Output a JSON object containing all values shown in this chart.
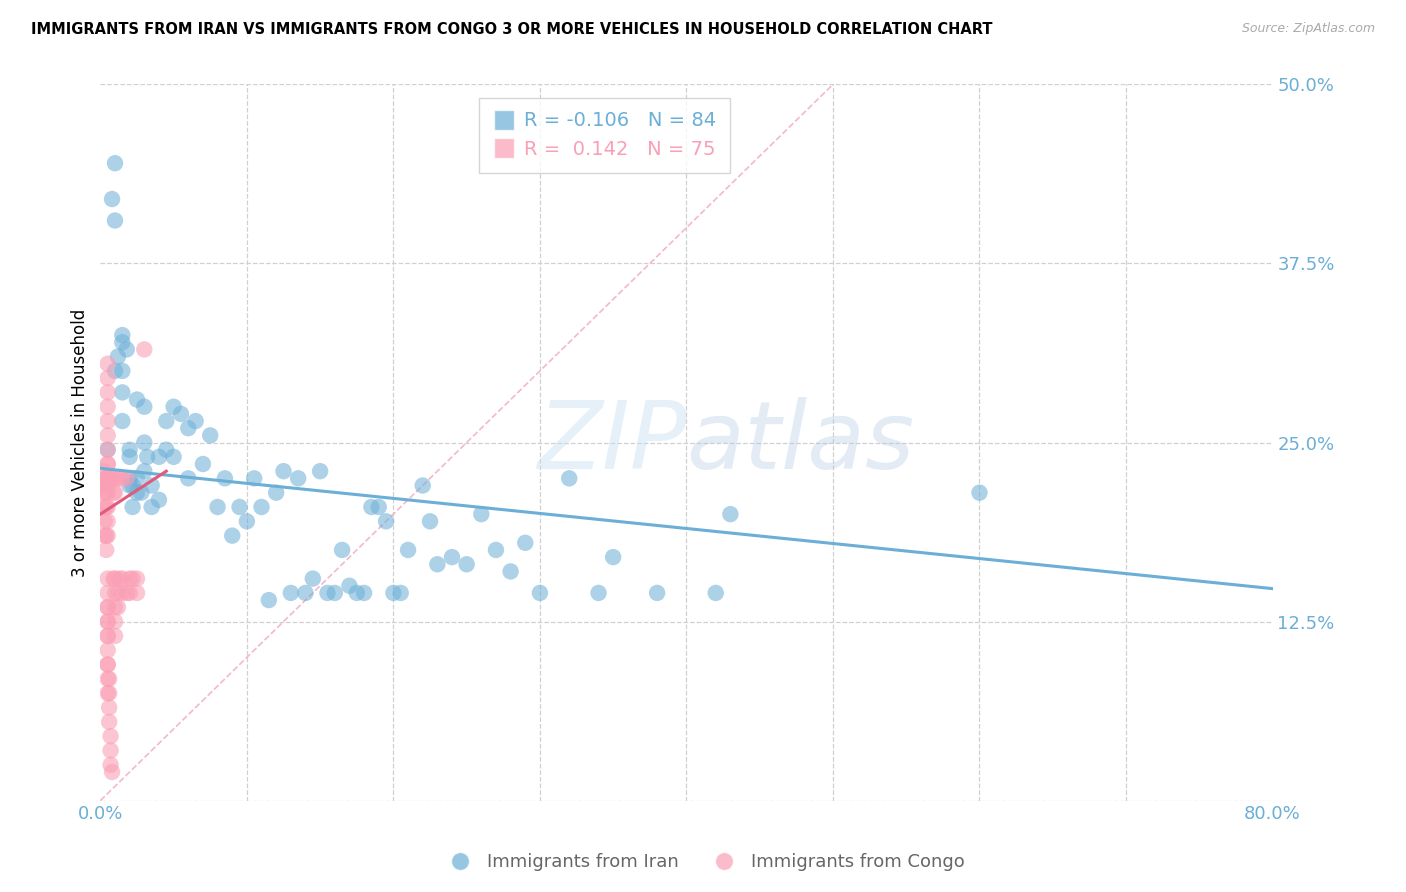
{
  "title": "IMMIGRANTS FROM IRAN VS IMMIGRANTS FROM CONGO 3 OR MORE VEHICLES IN HOUSEHOLD CORRELATION CHART",
  "source": "Source: ZipAtlas.com",
  "ylabel": "3 or more Vehicles in Household",
  "xlim": [
    0.0,
    0.8
  ],
  "ylim": [
    0.0,
    0.5
  ],
  "iran_color": "#6baed6",
  "congo_color": "#fa9fb5",
  "congo_line_color": "#e05a7a",
  "iran_R": -0.106,
  "iran_N": 84,
  "congo_R": 0.142,
  "congo_N": 75,
  "axis_color": "#6baed6",
  "legend_iran_label": "Immigrants from Iran",
  "legend_congo_label": "Immigrants from Congo",
  "iran_trend_x": [
    0.0,
    0.8
  ],
  "iran_trend_y": [
    0.232,
    0.148
  ],
  "congo_trend_x": [
    0.0,
    0.045
  ],
  "congo_trend_y": [
    0.2,
    0.23
  ],
  "diag_line_x": [
    0.0,
    0.5
  ],
  "diag_line_y": [
    0.0,
    0.5
  ],
  "iran_scatter_x": [
    0.005,
    0.008,
    0.01,
    0.01,
    0.012,
    0.015,
    0.015,
    0.015,
    0.018,
    0.02,
    0.02,
    0.02,
    0.02,
    0.022,
    0.022,
    0.025,
    0.025,
    0.025,
    0.028,
    0.03,
    0.03,
    0.03,
    0.032,
    0.035,
    0.035,
    0.04,
    0.04,
    0.045,
    0.045,
    0.05,
    0.05,
    0.055,
    0.06,
    0.06,
    0.065,
    0.07,
    0.075,
    0.08,
    0.085,
    0.09,
    0.095,
    0.1,
    0.105,
    0.11,
    0.115,
    0.12,
    0.125,
    0.13,
    0.135,
    0.14,
    0.145,
    0.15,
    0.155,
    0.16,
    0.165,
    0.17,
    0.175,
    0.18,
    0.185,
    0.19,
    0.195,
    0.2,
    0.205,
    0.21,
    0.22,
    0.225,
    0.23,
    0.24,
    0.25,
    0.26,
    0.27,
    0.28,
    0.29,
    0.3,
    0.32,
    0.34,
    0.35,
    0.38,
    0.42,
    0.43,
    0.6,
    0.015,
    0.015,
    0.01
  ],
  "iran_scatter_y": [
    0.245,
    0.42,
    0.405,
    0.3,
    0.31,
    0.285,
    0.3,
    0.265,
    0.315,
    0.245,
    0.225,
    0.22,
    0.24,
    0.205,
    0.22,
    0.215,
    0.225,
    0.28,
    0.215,
    0.25,
    0.23,
    0.275,
    0.24,
    0.205,
    0.22,
    0.24,
    0.21,
    0.245,
    0.265,
    0.24,
    0.275,
    0.27,
    0.26,
    0.225,
    0.265,
    0.235,
    0.255,
    0.205,
    0.225,
    0.185,
    0.205,
    0.195,
    0.225,
    0.205,
    0.14,
    0.215,
    0.23,
    0.145,
    0.225,
    0.145,
    0.155,
    0.23,
    0.145,
    0.145,
    0.175,
    0.15,
    0.145,
    0.145,
    0.205,
    0.205,
    0.195,
    0.145,
    0.145,
    0.175,
    0.22,
    0.195,
    0.165,
    0.17,
    0.165,
    0.2,
    0.175,
    0.16,
    0.18,
    0.145,
    0.225,
    0.145,
    0.17,
    0.145,
    0.145,
    0.2,
    0.215,
    0.32,
    0.325,
    0.445
  ],
  "congo_scatter_x": [
    0.002,
    0.002,
    0.002,
    0.003,
    0.003,
    0.003,
    0.003,
    0.004,
    0.004,
    0.004,
    0.004,
    0.004,
    0.005,
    0.005,
    0.005,
    0.005,
    0.005,
    0.005,
    0.005,
    0.005,
    0.005,
    0.005,
    0.005,
    0.005,
    0.005,
    0.005,
    0.005,
    0.005,
    0.005,
    0.005,
    0.005,
    0.005,
    0.005,
    0.005,
    0.005,
    0.005,
    0.005,
    0.005,
    0.005,
    0.005,
    0.005,
    0.005,
    0.006,
    0.006,
    0.006,
    0.006,
    0.007,
    0.007,
    0.007,
    0.008,
    0.008,
    0.009,
    0.009,
    0.01,
    0.01,
    0.01,
    0.01,
    0.01,
    0.01,
    0.01,
    0.012,
    0.012,
    0.012,
    0.013,
    0.015,
    0.015,
    0.015,
    0.018,
    0.018,
    0.02,
    0.02,
    0.022,
    0.025,
    0.025,
    0.03
  ],
  "congo_scatter_y": [
    0.225,
    0.215,
    0.23,
    0.22,
    0.205,
    0.195,
    0.185,
    0.225,
    0.215,
    0.205,
    0.185,
    0.175,
    0.225,
    0.22,
    0.235,
    0.245,
    0.205,
    0.195,
    0.185,
    0.225,
    0.215,
    0.155,
    0.145,
    0.135,
    0.125,
    0.115,
    0.105,
    0.095,
    0.085,
    0.075,
    0.225,
    0.235,
    0.255,
    0.265,
    0.275,
    0.285,
    0.295,
    0.305,
    0.135,
    0.125,
    0.115,
    0.095,
    0.085,
    0.075,
    0.065,
    0.055,
    0.045,
    0.035,
    0.025,
    0.02,
    0.225,
    0.215,
    0.155,
    0.225,
    0.215,
    0.155,
    0.145,
    0.135,
    0.125,
    0.115,
    0.225,
    0.145,
    0.135,
    0.155,
    0.225,
    0.155,
    0.145,
    0.225,
    0.145,
    0.155,
    0.145,
    0.155,
    0.155,
    0.145,
    0.315
  ]
}
